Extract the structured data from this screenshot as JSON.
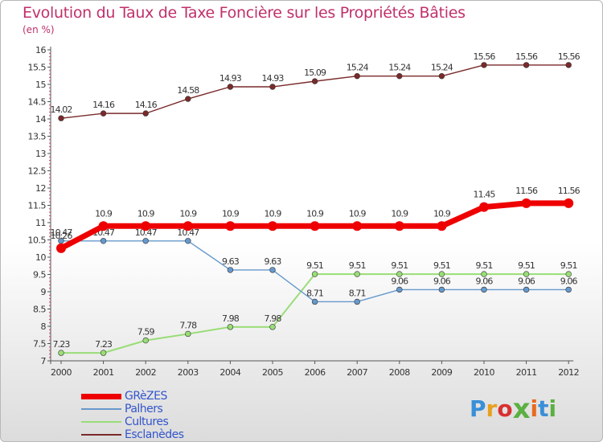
{
  "title": "Evolution du Taux de Taxe Foncière sur les Propriétés Bâties",
  "subtitle": "(en %)",
  "logo": {
    "text": "Proxiti",
    "colors": [
      "#3a8fd8",
      "#e8a020",
      "#d83030",
      "#5ab040",
      "#e86a20",
      "#3a8fd8",
      "#5ab040"
    ]
  },
  "chart_data": {
    "type": "line",
    "title": "Evolution du Taux de Taxe Foncière sur les Propriétés Bâties",
    "ylabel": "(en %)",
    "xlabel": "",
    "ylim": [
      7,
      16
    ],
    "yticks": [
      7,
      7.5,
      8,
      8.5,
      9,
      9.5,
      10,
      10.5,
      11,
      11.5,
      12,
      12.5,
      13,
      13.5,
      14,
      14.5,
      15,
      15.5,
      16
    ],
    "ytick_labels": [
      "7",
      "7.5",
      "8",
      "8.5",
      "9",
      "9.5",
      "10",
      "10.5",
      "11",
      "11.5",
      "12",
      "12.5",
      "13",
      "13.5",
      "14",
      "14.5",
      "15",
      "15.5",
      "16"
    ],
    "categories": [
      "2000",
      "2001",
      "2002",
      "2003",
      "2004",
      "2005",
      "2006",
      "2007",
      "2008",
      "2009",
      "2010",
      "2011",
      "2012"
    ],
    "series": [
      {
        "name": "Esclanèdes",
        "color": "#7a2a2a",
        "width": 1.4,
        "values": [
          14.02,
          14.16,
          14.16,
          14.58,
          14.93,
          14.93,
          15.09,
          15.24,
          15.24,
          15.24,
          15.56,
          15.56,
          15.56
        ],
        "labels": [
          "14.02",
          "14.16",
          "14.16",
          "14.58",
          "14.93",
          "14.93",
          "15.09",
          "15.24",
          "15.24",
          "15.24",
          "15.56",
          "15.56",
          "15.56"
        ]
      },
      {
        "name": "Cultures",
        "color": "#99dd77",
        "width": 2,
        "values": [
          7.23,
          7.23,
          7.59,
          7.78,
          7.98,
          7.98,
          9.51,
          9.51,
          9.51,
          9.51,
          9.51,
          9.51,
          9.51
        ],
        "labels": [
          "7.23",
          "7.23",
          "7.59",
          "7.78",
          "7.98",
          "7.98",
          "9.51",
          "9.51",
          "9.51",
          "9.51",
          "9.51",
          "9.51",
          "9.51"
        ]
      },
      {
        "name": "Palhers",
        "color": "#6699cc",
        "width": 1.4,
        "values": [
          10.47,
          10.47,
          10.47,
          10.47,
          9.63,
          9.63,
          8.71,
          8.71,
          9.06,
          9.06,
          9.06,
          9.06,
          9.06
        ],
        "labels": [
          "10.47",
          "10.47",
          "10.47",
          "10.47",
          "9.63",
          "9.63",
          "8.71",
          "8.71",
          "9.06",
          "9.06",
          "9.06",
          "9.06",
          "9.06"
        ]
      },
      {
        "name": "GRèZES",
        "color": "#ee0000",
        "width": 7,
        "values": [
          10.26,
          10.9,
          10.9,
          10.9,
          10.9,
          10.9,
          10.9,
          10.9,
          10.9,
          10.9,
          11.45,
          11.56,
          11.56
        ],
        "labels": [
          "10.26",
          "10.9",
          "10.9",
          "10.9",
          "10.9",
          "10.9",
          "10.9",
          "10.9",
          "10.9",
          "10.9",
          "11.45",
          "11.56",
          "11.56"
        ]
      }
    ],
    "legend": [
      {
        "name": "GRèZES",
        "color": "#ee0000",
        "width": 7
      },
      {
        "name": "Palhers",
        "color": "#6699cc",
        "width": 2
      },
      {
        "name": "Cultures",
        "color": "#99dd77",
        "width": 2
      },
      {
        "name": "Esclanèdes",
        "color": "#7a2a2a",
        "width": 2
      }
    ],
    "legend_position": "bottom-left",
    "grid": false
  }
}
